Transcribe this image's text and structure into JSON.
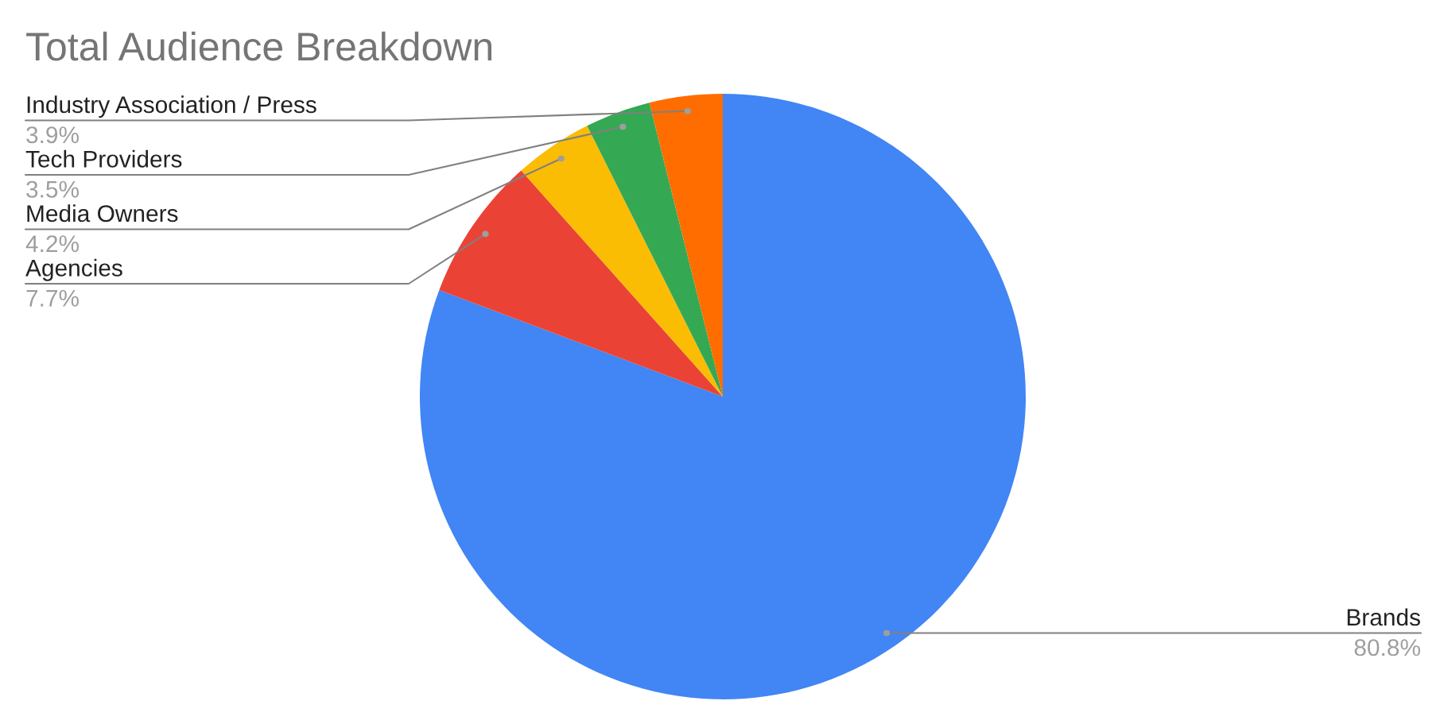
{
  "chart_data": {
    "type": "pie",
    "title": "Total Audience Breakdown",
    "categories": [
      "Brands",
      "Agencies",
      "Media Owners",
      "Tech Providers",
      "Industry Association / Press"
    ],
    "values": [
      80.8,
      7.7,
      4.2,
      3.5,
      3.9
    ],
    "value_labels": [
      "80.8%",
      "7.7%",
      "4.2%",
      "3.5%",
      "3.9%"
    ],
    "colors": [
      "#4285f4",
      "#ea4335",
      "#fbbc04",
      "#34a853",
      "#ff6d01"
    ]
  }
}
